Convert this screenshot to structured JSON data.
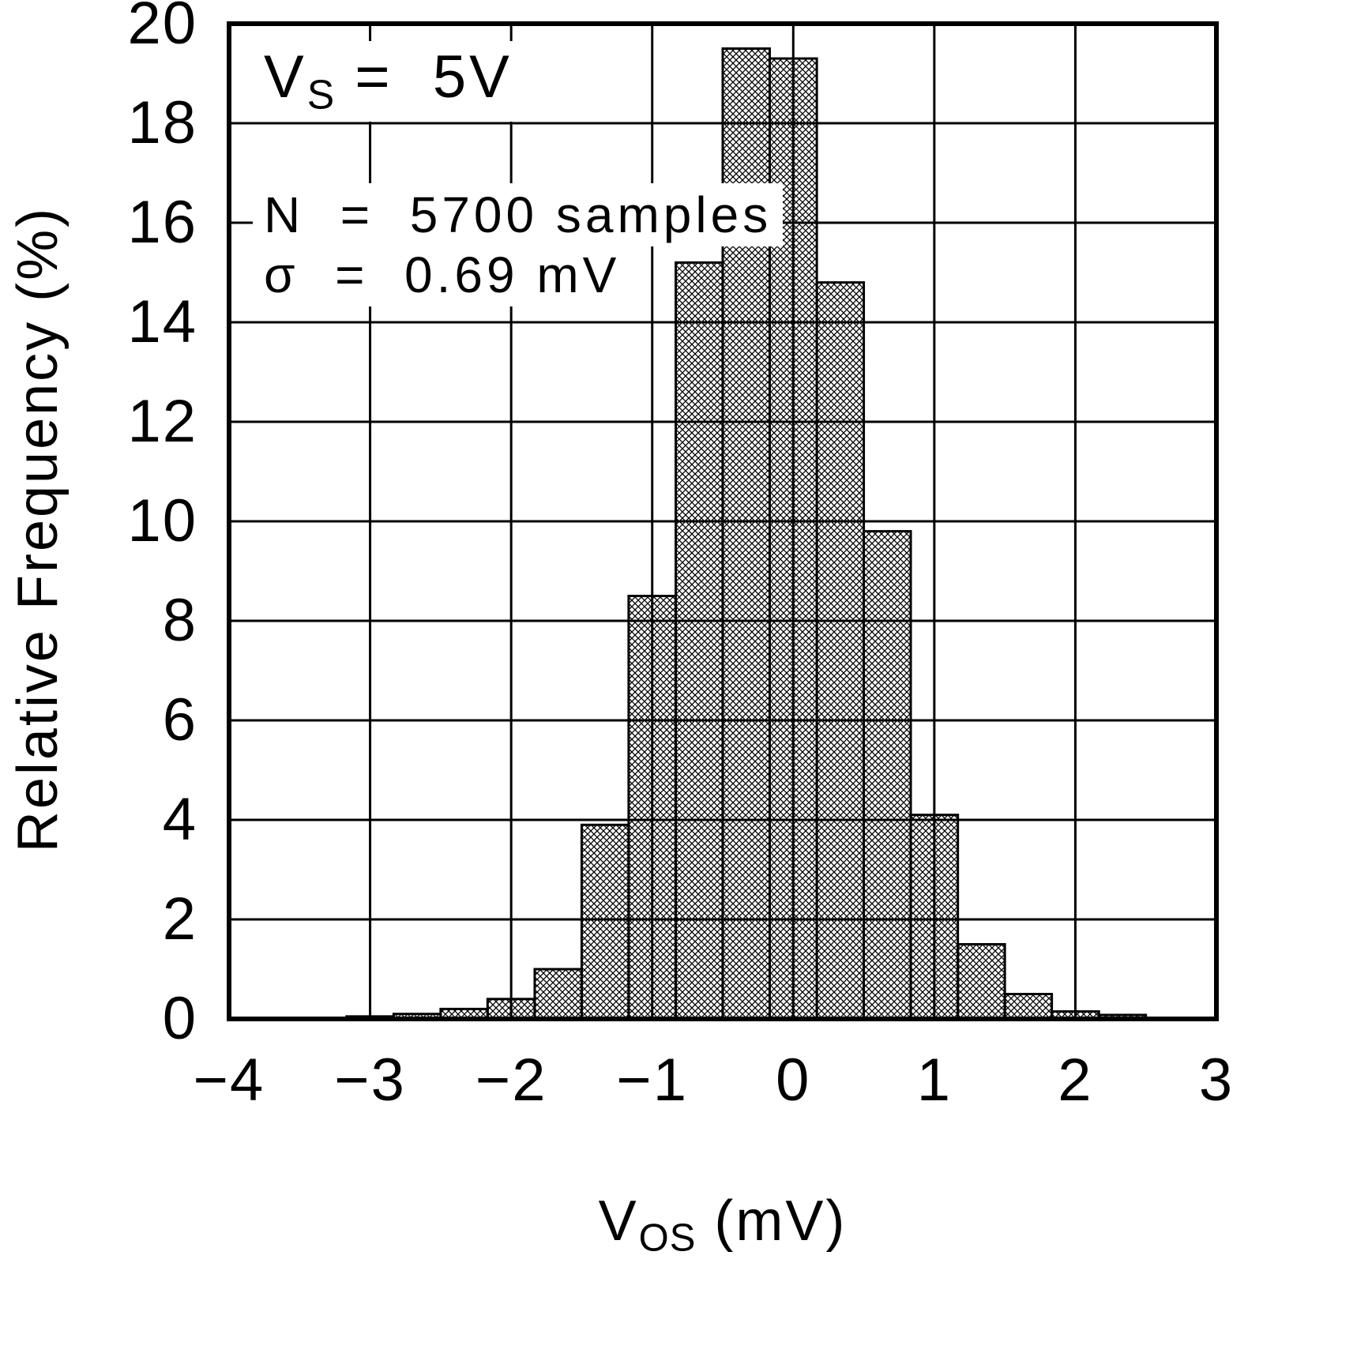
{
  "figure": {
    "background": "#ffffff",
    "axis_color": "#000000",
    "grid_color": "#000000",
    "hatch_color": "#000000"
  },
  "ylabel": "Relative Frequency (%)",
  "xlabel": {
    "base": "V",
    "sub": "OS",
    "unit": " (mV)"
  },
  "annotations": {
    "supply": {
      "base": "V",
      "sub": "S",
      "rest": " =  5V"
    },
    "samples": "N  =  5700 samples",
    "sigma": "σ  =  0.69 mV"
  },
  "chart_data": {
    "type": "bar",
    "title": "",
    "xlabel": "VOS (mV)",
    "ylabel": "Relative Frequency (%)",
    "xlim": [
      -4,
      3
    ],
    "ylim": [
      0,
      20
    ],
    "grid": true,
    "x_tick_step": 1,
    "y_tick_step": 2,
    "x_ticks": [
      {
        "value": -4,
        "label": "−4"
      },
      {
        "value": -3,
        "label": "−3"
      },
      {
        "value": -2,
        "label": "−2"
      },
      {
        "value": -1,
        "label": "−1"
      },
      {
        "value": 0,
        "label": "0"
      },
      {
        "value": 1,
        "label": "1"
      },
      {
        "value": 2,
        "label": "2"
      },
      {
        "value": 3,
        "label": "3"
      }
    ],
    "y_ticks": [
      {
        "value": 0,
        "label": "0"
      },
      {
        "value": 2,
        "label": "2"
      },
      {
        "value": 4,
        "label": "4"
      },
      {
        "value": 6,
        "label": "6"
      },
      {
        "value": 8,
        "label": "8"
      },
      {
        "value": 10,
        "label": "10"
      },
      {
        "value": 12,
        "label": "12"
      },
      {
        "value": 14,
        "label": "14"
      },
      {
        "value": 16,
        "label": "16"
      },
      {
        "value": 18,
        "label": "18"
      },
      {
        "value": 20,
        "label": "20"
      }
    ],
    "annotations": [
      "VS = 5V",
      "N = 5700 samples",
      "σ = 0.69 mV"
    ],
    "bin_width_mV": 0.333,
    "bins": [
      {
        "x0": -3.167,
        "x1": -2.833,
        "value": 0.05
      },
      {
        "x0": -2.833,
        "x1": -2.5,
        "value": 0.1
      },
      {
        "x0": -2.5,
        "x1": -2.167,
        "value": 0.2
      },
      {
        "x0": -2.167,
        "x1": -1.833,
        "value": 0.4
      },
      {
        "x0": -1.833,
        "x1": -1.5,
        "value": 1.0
      },
      {
        "x0": -1.5,
        "x1": -1.167,
        "value": 3.9
      },
      {
        "x0": -1.167,
        "x1": -0.833,
        "value": 8.5
      },
      {
        "x0": -0.833,
        "x1": -0.5,
        "value": 15.2
      },
      {
        "x0": -0.5,
        "x1": -0.167,
        "value": 19.5
      },
      {
        "x0": -0.167,
        "x1": 0.167,
        "value": 19.3
      },
      {
        "x0": 0.167,
        "x1": 0.5,
        "value": 14.8
      },
      {
        "x0": 0.5,
        "x1": 0.833,
        "value": 9.8
      },
      {
        "x0": 0.833,
        "x1": 1.167,
        "value": 4.1
      },
      {
        "x0": 1.167,
        "x1": 1.5,
        "value": 1.5
      },
      {
        "x0": 1.5,
        "x1": 1.833,
        "value": 0.5
      },
      {
        "x0": 1.833,
        "x1": 2.167,
        "value": 0.15
      },
      {
        "x0": 2.167,
        "x1": 2.5,
        "value": 0.08
      }
    ]
  }
}
